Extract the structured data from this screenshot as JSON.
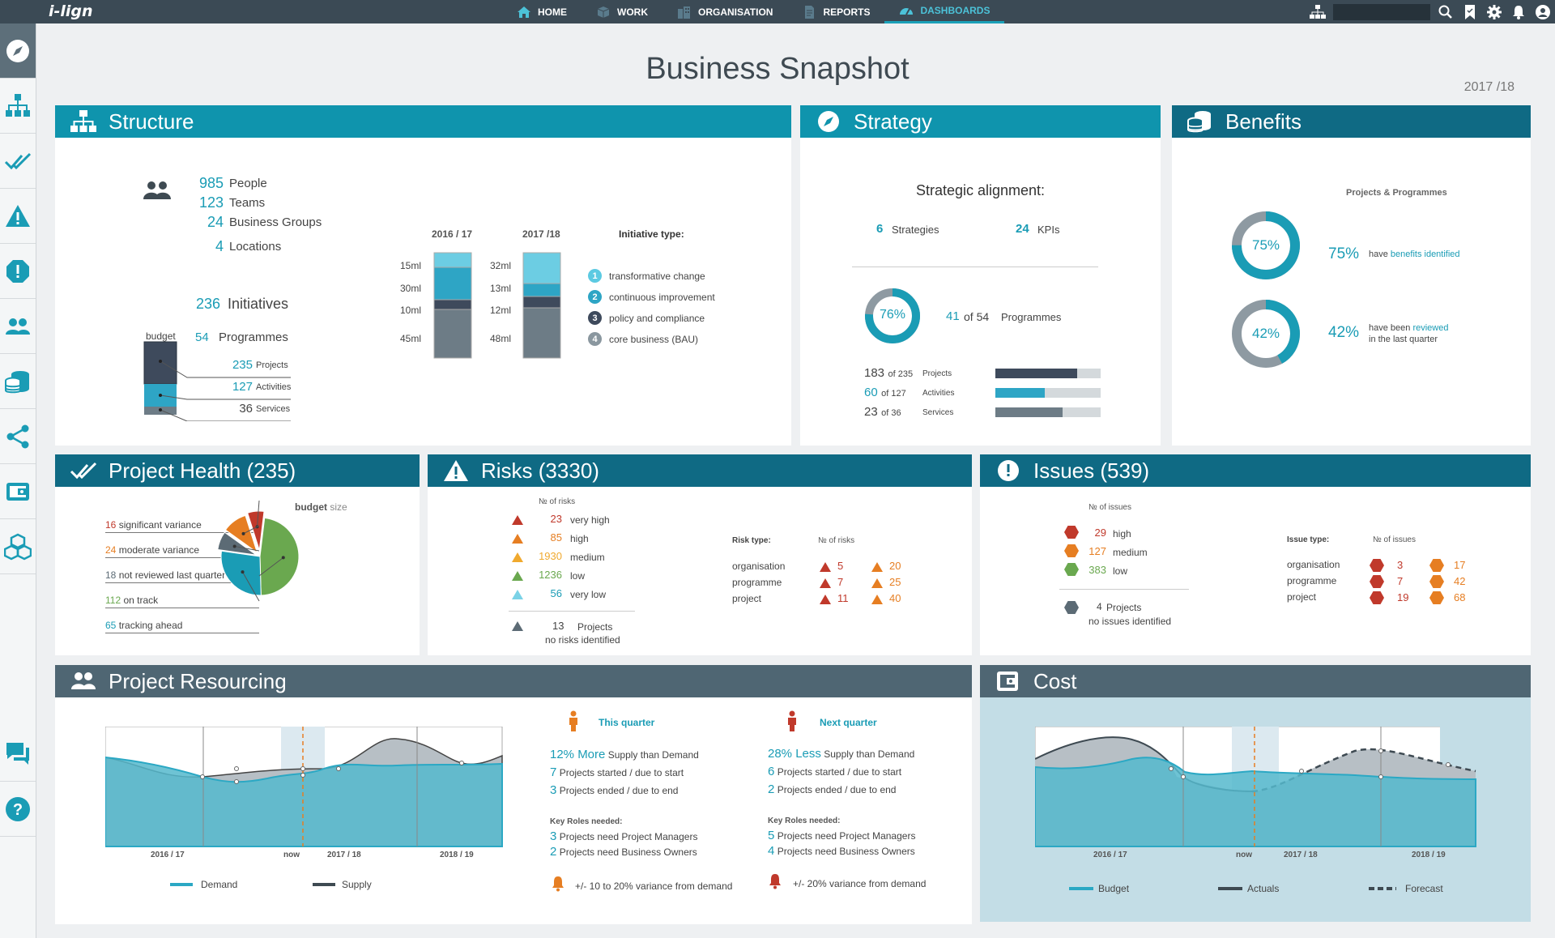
{
  "app": {
    "logo": "i-lign",
    "page_title": "Business Snapshot",
    "year": "2017 /18"
  },
  "nav": {
    "items": [
      {
        "label": "HOME",
        "icon": "home-icon"
      },
      {
        "label": "WORK",
        "icon": "cube-icon"
      },
      {
        "label": "ORGANISATION",
        "icon": "buildings-icon"
      },
      {
        "label": "REPORTS",
        "icon": "document-icon"
      },
      {
        "label": "DASHBOARDS",
        "icon": "dashboard-icon",
        "active": true
      }
    ]
  },
  "topbar_icons": [
    "org-chart-icon",
    "search-icon",
    "bookmark-icon",
    "gear-icon",
    "bell-icon",
    "user-icon"
  ],
  "sidebar": {
    "items": [
      {
        "icon": "compass-icon",
        "active": true
      },
      {
        "icon": "structure-icon"
      },
      {
        "icon": "double-check-icon"
      },
      {
        "icon": "warning-icon"
      },
      {
        "icon": "alert-octagon-icon"
      },
      {
        "icon": "people-icon"
      },
      {
        "icon": "coins-icon"
      },
      {
        "icon": "share-icon"
      },
      {
        "icon": "wallet-icon"
      },
      {
        "icon": "cubes-icon"
      },
      {
        "icon": "chat-icon"
      },
      {
        "icon": "help-icon"
      }
    ]
  },
  "colors": {
    "teal": "#1a9cb5",
    "dark_header": "#0f6a84",
    "slate_header": "#4f6673",
    "red": "#c0392b",
    "orange": "#e67e22",
    "yellow": "#f0a92e",
    "green": "#6aa84f",
    "light_blue": "#7ad2e6"
  },
  "structure": {
    "title": "Structure",
    "people": {
      "value": "985",
      "label": "People"
    },
    "teams": {
      "value": "123",
      "label": "Teams"
    },
    "groups": {
      "value": "24",
      "label": "Business Groups"
    },
    "locations": {
      "value": "4",
      "label": "Locations"
    },
    "initiatives": {
      "value": "236",
      "label": "Initiatives"
    },
    "budget_label": "budget",
    "programmes": {
      "value": "54",
      "label": "Programmes"
    },
    "projects": {
      "value": "235",
      "label": "Projects"
    },
    "activities": {
      "value": "127",
      "label": "Activities"
    },
    "services": {
      "value": "36",
      "label": "Services"
    },
    "col1_label": "2016 / 17",
    "col2_label": "2017 /18",
    "col1_values": [
      "15ml",
      "30ml",
      "10ml",
      "45ml"
    ],
    "col2_values": [
      "32ml",
      "13ml",
      "12ml",
      "48ml"
    ],
    "initiative_type_label": "Initiative type:",
    "types": [
      {
        "num": "1",
        "label": "transformative change"
      },
      {
        "num": "2",
        "label": "continuous improvement"
      },
      {
        "num": "3",
        "label": "policy and compliance"
      },
      {
        "num": "4",
        "label": "core business (BAU)"
      }
    ]
  },
  "strategy": {
    "title": "Strategy",
    "heading": "Strategic alignment:",
    "strategies": {
      "value": "6",
      "label": "Strategies"
    },
    "kpis": {
      "value": "24",
      "label": "KPIs"
    },
    "donut_pct": "76%",
    "programmes_num": "41",
    "programmes_of": "of 54",
    "programmes_label": "Programmes",
    "rows": [
      {
        "num": "183",
        "of": "of 235",
        "label": "Projects",
        "fraction": 0.78
      },
      {
        "num": "60",
        "of": "of 127",
        "label": "Activities",
        "fraction": 0.47
      },
      {
        "num": "23",
        "of": "of 36",
        "label": "Services",
        "fraction": 0.64
      }
    ]
  },
  "benefits": {
    "title": "Benefits",
    "subtitle": "Projects & Programmes",
    "donut1_pct": "75%",
    "donut1_big": "75%",
    "donut1_text_a": "have ",
    "donut1_text_b": "benefits identified",
    "donut2_pct": "42%",
    "donut2_big": "42%",
    "donut2_text_a": "have been ",
    "donut2_text_b": "reviewed",
    "donut2_text_c": "in the last quarter"
  },
  "health": {
    "title": "Project Health (235)",
    "budget_label": "budget",
    "size_label": "size",
    "items": [
      {
        "num": "16",
        "label": "significant variance",
        "color": "#c0392b"
      },
      {
        "num": "24",
        "label": "moderate variance",
        "color": "#e67e22"
      },
      {
        "num": "18",
        "label": "not reviewed last quarter",
        "color": "#5c6b75"
      },
      {
        "num": "112",
        "label": "on track",
        "color": "#6aa84f"
      },
      {
        "num": "65",
        "label": "tracking ahead",
        "color": "#1a9cb5"
      }
    ]
  },
  "risks": {
    "title": "Risks (3330)",
    "count_label": "№ of risks",
    "levels": [
      {
        "num": "23",
        "label": "very high",
        "color": "#c0392b"
      },
      {
        "num": "85",
        "label": "high",
        "color": "#e67e22"
      },
      {
        "num": "1930",
        "label": "medium",
        "color": "#f0a92e"
      },
      {
        "num": "1236",
        "label": "low",
        "color": "#6aa84f"
      },
      {
        "num": "56",
        "label": "very low",
        "color": "#7ad2e6"
      }
    ],
    "none_num": "13",
    "none_label1": "Projects",
    "none_label2": "no risks identified",
    "type_label": "Risk type:",
    "type_count_label": "№ of risks",
    "types": [
      {
        "label": "organisation",
        "a": "5",
        "b": "20"
      },
      {
        "label": "programme",
        "a": "7",
        "b": "25"
      },
      {
        "label": "project",
        "a": "11",
        "b": "40"
      }
    ]
  },
  "issues": {
    "title": "Issues (539)",
    "count_label": "№ of issues",
    "levels": [
      {
        "num": "29",
        "label": "high",
        "color": "#c0392b"
      },
      {
        "num": "127",
        "label": "medium",
        "color": "#e67e22"
      },
      {
        "num": "383",
        "label": "low",
        "color": "#6aa84f"
      }
    ],
    "none_num": "4",
    "none_label1": "Projects",
    "none_label2": "no issues  identified",
    "type_label": "Issue type:",
    "type_count_label": "№ of issues",
    "types": [
      {
        "label": "organisation",
        "a": "3",
        "b": "17"
      },
      {
        "label": "programme",
        "a": "7",
        "b": "42"
      },
      {
        "label": "project",
        "a": "19",
        "b": "68"
      }
    ]
  },
  "resourcing": {
    "title": "Project Resourcing",
    "x_labels": [
      "2016 / 17",
      "now",
      "2017 / 18",
      "2018 / 19"
    ],
    "legend_demand": "Demand",
    "legend_supply": "Supply",
    "this_quarter": {
      "title": "This quarter",
      "l1_num": "12% More",
      "l1_text": "Supply than Demand",
      "l2_num": "7",
      "l2_text": "Projects started / due to start",
      "l3_num": "3",
      "l3_text": "Projects ended / due to end",
      "roles_label": "Key Roles needed:",
      "r1_num": "3",
      "r1_text": "Projects need Project Managers",
      "r2_num": "2",
      "r2_text": "Projects need Business Owners",
      "variance": "+/- 10 to 20%   variance from demand"
    },
    "next_quarter": {
      "title": "Next quarter",
      "l1_num": "28% Less",
      "l1_text": "Supply than Demand",
      "l2_num": "6",
      "l2_text": "Projects started / due to start",
      "l3_num": "2",
      "l3_text": "Projects ended / due to end",
      "roles_label": "Key Roles needed:",
      "r1_num": "5",
      "r1_text": "Projects need Project Managers",
      "r2_num": "4",
      "r2_text": "Projects need Business Owners",
      "variance": "+/- 20% variance from demand"
    }
  },
  "cost": {
    "title": "Cost",
    "x_labels": [
      "2016 / 17",
      "now",
      "2017 / 18",
      "2018 / 19"
    ],
    "legend_budget": "Budget",
    "legend_actuals": "Actuals",
    "legend_forecast": "Forecast"
  }
}
